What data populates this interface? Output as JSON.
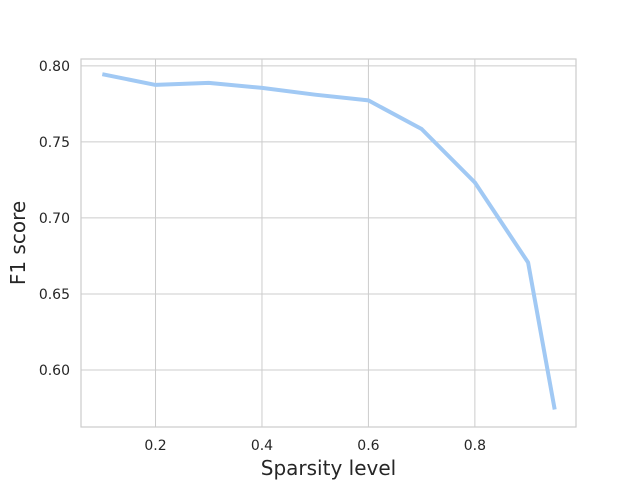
{
  "chart_data": {
    "type": "line",
    "title": "",
    "xlabel": "Sparsity level",
    "ylabel": "F1 score",
    "xlim": [
      0.06,
      0.99
    ],
    "ylim": [
      0.5625,
      0.8045
    ],
    "x_ticks": [
      0.2,
      0.4,
      0.6,
      0.8
    ],
    "x_tick_labels": [
      "0.2",
      "0.4",
      "0.6",
      "0.8"
    ],
    "y_ticks": [
      0.6,
      0.65,
      0.7,
      0.75,
      0.8
    ],
    "y_tick_labels": [
      "0.60",
      "0.65",
      "0.70",
      "0.75",
      "0.80"
    ],
    "grid": true,
    "legend": "none",
    "series": [
      {
        "color": "#a1c9f4",
        "x": [
          0.1,
          0.2,
          0.3,
          0.4,
          0.5,
          0.6,
          0.7,
          0.8,
          0.9,
          0.95
        ],
        "y": [
          0.7945,
          0.7875,
          0.7888,
          0.7855,
          0.781,
          0.7773,
          0.7585,
          0.7233,
          0.6707,
          0.574
        ]
      }
    ]
  }
}
